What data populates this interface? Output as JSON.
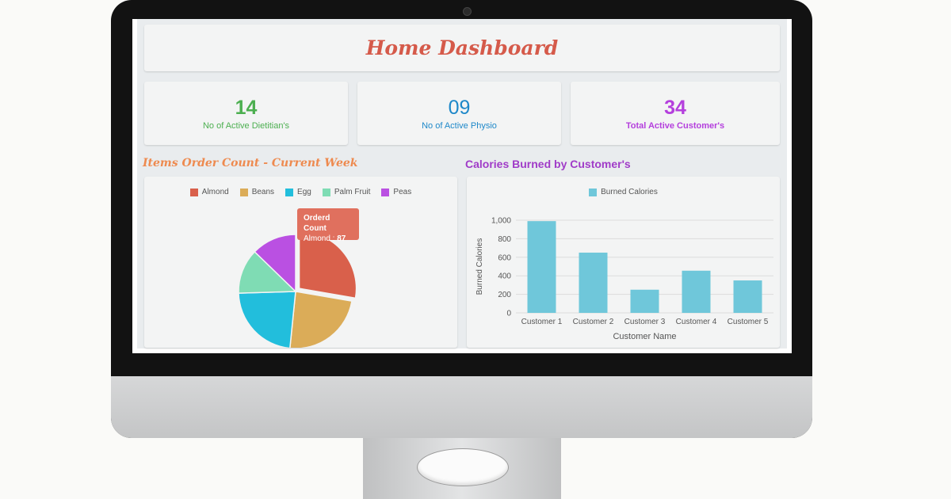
{
  "dashboard": {
    "title": "Home Dashboard"
  },
  "stats": [
    {
      "value": "14",
      "label": "No of Active Dietitian's",
      "color": "#4caf50"
    },
    {
      "value": "09",
      "label": "No of Active Physio",
      "color": "#1e88c9"
    },
    {
      "value": "34",
      "label": "Total Active Customer's",
      "color": "#b43fdd"
    }
  ],
  "pie_section": {
    "title": "Items Order Count - Current Week",
    "tooltip": {
      "title": "Orderd Count",
      "label": "Almond",
      "value": "87"
    }
  },
  "bar_section": {
    "title": "Calories Burned by Customer's"
  },
  "chart_data": [
    {
      "type": "pie",
      "categories": [
        "Almond",
        "Beans",
        "Egg",
        "Palm Fruit",
        "Peas"
      ],
      "values": [
        87,
        75,
        72,
        40,
        40
      ],
      "colors": [
        "#d9604b",
        "#dbac58",
        "#22bedc",
        "#7fdcb4",
        "#ba50e2"
      ],
      "exploded": "Almond",
      "legend": "top"
    },
    {
      "type": "bar",
      "categories": [
        "Customer 1",
        "Customer 2",
        "Customer 3",
        "Customer 4",
        "Customer 5"
      ],
      "series": [
        {
          "name": "Burned Calories",
          "values": [
            990,
            650,
            250,
            455,
            350
          ]
        }
      ],
      "xlabel": "Customer Name",
      "ylabel": "Burned Calories",
      "ylim": [
        0,
        1000
      ],
      "yticks": [
        "0",
        "200",
        "400",
        "600",
        "800",
        "1,000"
      ],
      "color": "#6fc7da",
      "grid": true,
      "legend": "top"
    }
  ]
}
